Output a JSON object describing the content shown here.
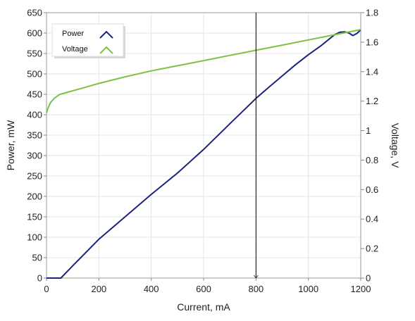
{
  "chart_data": {
    "type": "line",
    "xlabel": "Current, mA",
    "ylabel_left": "Power, mW",
    "ylabel_right": "Voltage, V",
    "xlim": [
      0,
      1200
    ],
    "ylim_left": [
      0,
      650
    ],
    "ylim_right": [
      0,
      1.8
    ],
    "x_ticks": [
      "0",
      "200",
      "400",
      "600",
      "800",
      "1000",
      "1200"
    ],
    "y_left_ticks": [
      "0",
      "50",
      "100",
      "150",
      "200",
      "250",
      "300",
      "350",
      "400",
      "450",
      "500",
      "550",
      "600",
      "650"
    ],
    "y_right_ticks": [
      "0",
      "0.2",
      "0.4",
      "0.6",
      "0.8",
      "1",
      "1.2",
      "1.4",
      "1.6",
      "1.8"
    ],
    "grid": true,
    "legend_position": "top-left",
    "cursor_x": 800,
    "series": [
      {
        "name": "Power",
        "axis": "left",
        "color": "#1a237e",
        "x": [
          0,
          20,
          40,
          55,
          100,
          200,
          300,
          400,
          500,
          600,
          700,
          800,
          850,
          900,
          950,
          1000,
          1050,
          1100,
          1120,
          1140,
          1155,
          1170,
          1185,
          1200
        ],
        "y": [
          0,
          0,
          0,
          0,
          30,
          95,
          150,
          205,
          257,
          315,
          378,
          440,
          468,
          495,
          522,
          547,
          570,
          596,
          602,
          603,
          600,
          594,
          599,
          608
        ]
      },
      {
        "name": "Voltage",
        "axis": "right",
        "color": "#7cc242",
        "x": [
          0,
          5,
          15,
          30,
          50,
          80,
          120,
          200,
          300,
          400,
          500,
          600,
          700,
          800,
          900,
          1000,
          1100,
          1200
        ],
        "y": [
          1.12,
          1.15,
          1.19,
          1.22,
          1.245,
          1.26,
          1.28,
          1.32,
          1.365,
          1.405,
          1.44,
          1.475,
          1.51,
          1.545,
          1.58,
          1.615,
          1.65,
          1.685
        ]
      }
    ]
  }
}
